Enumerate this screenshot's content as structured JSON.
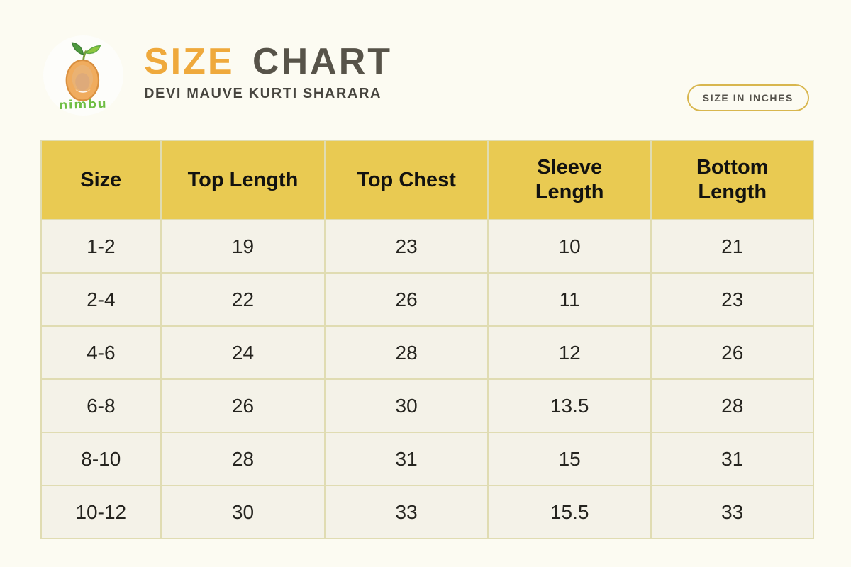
{
  "header": {
    "logo_text": "nimbu",
    "title_primary": "SIZE",
    "title_secondary": "CHART",
    "subtitle": "DEVI MAUVE KURTI SHARARA",
    "unit_badge": "SIZE IN INCHES"
  },
  "colors": {
    "page_background": "#FCFBF2",
    "title_accent": "#EFA93C",
    "title_muted": "#575349",
    "header_row_yellow": "#E9CA52",
    "cell_background": "#F4F2E8",
    "cell_border": "#E0DCB2",
    "badge_border": "#D8B64E",
    "logo_green": "#6FBE44",
    "logo_fruit_orange": "#F0AC5E"
  },
  "chart_data": {
    "type": "table",
    "title": "SIZE CHART",
    "subtitle": "DEVI MAUVE KURTI SHARARA",
    "unit": "SIZE IN INCHES",
    "columns": [
      "Size",
      "Top Length",
      "Top Chest",
      "Sleeve Length",
      "Bottom Length"
    ],
    "rows": [
      [
        "1-2",
        "19",
        "23",
        "10",
        "21"
      ],
      [
        "2-4",
        "22",
        "26",
        "11",
        "23"
      ],
      [
        "4-6",
        "24",
        "28",
        "12",
        "26"
      ],
      [
        "6-8",
        "26",
        "30",
        "13.5",
        "28"
      ],
      [
        "8-10",
        "28",
        "31",
        "15",
        "31"
      ],
      [
        "10-12",
        "30",
        "33",
        "15.5",
        "33"
      ]
    ]
  }
}
